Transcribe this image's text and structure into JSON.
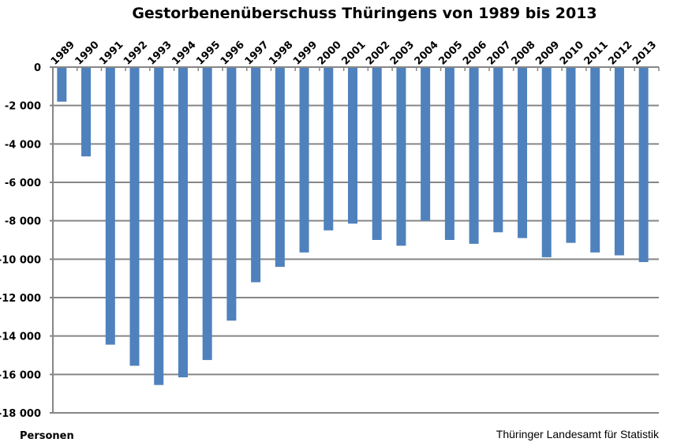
{
  "chart_data": {
    "type": "bar",
    "title": "Gestorbenenüberschuss Thüringens von 1989 bis 2013",
    "xlabel": "",
    "ylabel": "Personen",
    "source": "Thüringer Landesamt für Statistik",
    "categories": [
      "1989",
      "1990",
      "1991",
      "1992",
      "1993",
      "1994",
      "1995",
      "1996",
      "1997",
      "1998",
      "1999",
      "2000",
      "2001",
      "2002",
      "2003",
      "2004",
      "2005",
      "2006",
      "2007",
      "2008",
      "2009",
      "2010",
      "2011",
      "2012",
      "2013"
    ],
    "values": [
      -1800,
      -4650,
      -14450,
      -15550,
      -16550,
      -16150,
      -15250,
      -13200,
      -11200,
      -10400,
      -9650,
      -8500,
      -8150,
      -9000,
      -9300,
      -8000,
      -9000,
      -9200,
      -8600,
      -8900,
      -9900,
      -9150,
      -9650,
      -9800,
      -10150
    ],
    "ylim": [
      -18000,
      0
    ],
    "yticks": [
      0,
      -2000,
      -4000,
      -6000,
      -8000,
      -10000,
      -12000,
      -14000,
      -16000,
      -18000
    ],
    "ytick_labels": [
      "0",
      "-2 000",
      "-4 000",
      "-6 000",
      "-8 000",
      "-10 000",
      "-12 000",
      "-14 000",
      "-16 000",
      "-18 000"
    ],
    "grid": true,
    "x_axis_position": "top",
    "legend": null,
    "bar_color": "#4f81bd",
    "grid_color": "#868686"
  }
}
